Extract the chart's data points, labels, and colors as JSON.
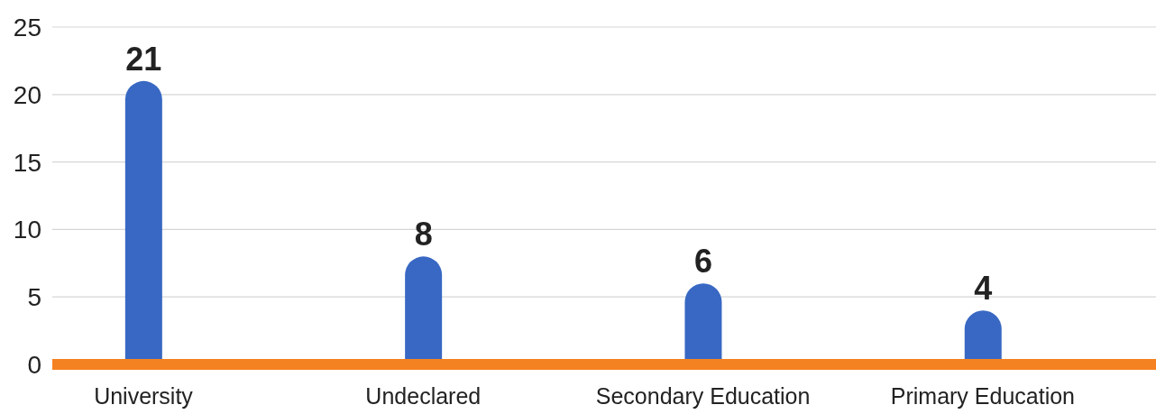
{
  "chart_data": {
    "type": "bar",
    "categories": [
      "University",
      "Undeclared",
      "Secondary Education",
      "Primary Education"
    ],
    "values": [
      21,
      8,
      6,
      4
    ],
    "color": "#3868c3",
    "ylim": [
      0,
      25
    ],
    "yticks": [
      0,
      5,
      10,
      15,
      20,
      25
    ],
    "grid": "y",
    "data_labels": true
  }
}
